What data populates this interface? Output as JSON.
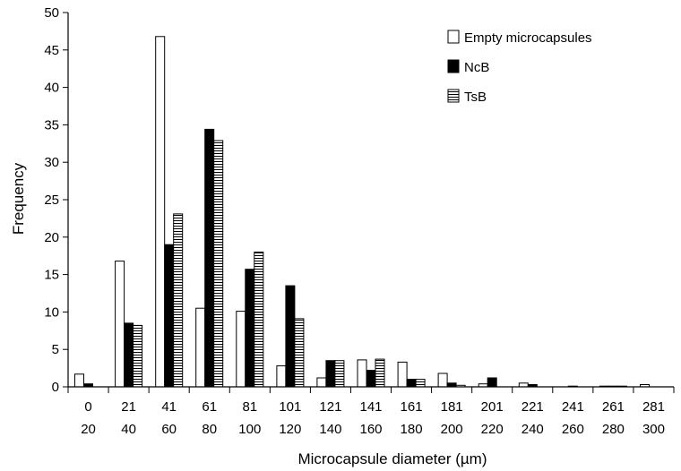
{
  "chart_data": {
    "type": "bar",
    "title": "",
    "xlabel": "Microcapsule diameter (µm)",
    "ylabel": "Frequency",
    "ylim": [
      0,
      50
    ],
    "yticks": [
      0,
      5,
      10,
      15,
      20,
      25,
      30,
      35,
      40,
      45,
      50
    ],
    "grid": false,
    "legend_position": "top-right",
    "categories": [
      {
        "low": "0",
        "high": "20"
      },
      {
        "low": "21",
        "high": "40"
      },
      {
        "low": "41",
        "high": "60"
      },
      {
        "low": "61",
        "high": "80"
      },
      {
        "low": "81",
        "high": "100"
      },
      {
        "low": "101",
        "high": "120"
      },
      {
        "low": "121",
        "high": "140"
      },
      {
        "low": "141",
        "high": "160"
      },
      {
        "low": "161",
        "high": "180"
      },
      {
        "low": "181",
        "high": "200"
      },
      {
        "low": "201",
        "high": "220"
      },
      {
        "low": "221",
        "high": "240"
      },
      {
        "low": "241",
        "high": "260"
      },
      {
        "low": "261",
        "high": "280"
      },
      {
        "low": "281",
        "high": "300"
      }
    ],
    "series": [
      {
        "name": "Empty microcapsules",
        "style": "white",
        "values": [
          1.7,
          16.8,
          46.8,
          10.5,
          10.1,
          2.8,
          1.2,
          3.6,
          3.3,
          1.8,
          0.4,
          0.5,
          0.0,
          0.1,
          0.3
        ]
      },
      {
        "name": "NcB",
        "style": "black",
        "values": [
          0.4,
          8.5,
          19.0,
          34.4,
          15.7,
          13.5,
          3.5,
          2.2,
          1.0,
          0.5,
          1.2,
          0.3,
          0.1,
          0.1,
          0.0
        ]
      },
      {
        "name": "TsB",
        "style": "hatched",
        "values": [
          0.0,
          8.2,
          23.1,
          32.9,
          18.0,
          9.1,
          3.5,
          3.7,
          1.0,
          0.2,
          0.0,
          0.0,
          0.0,
          0.1,
          0.0
        ]
      }
    ]
  }
}
